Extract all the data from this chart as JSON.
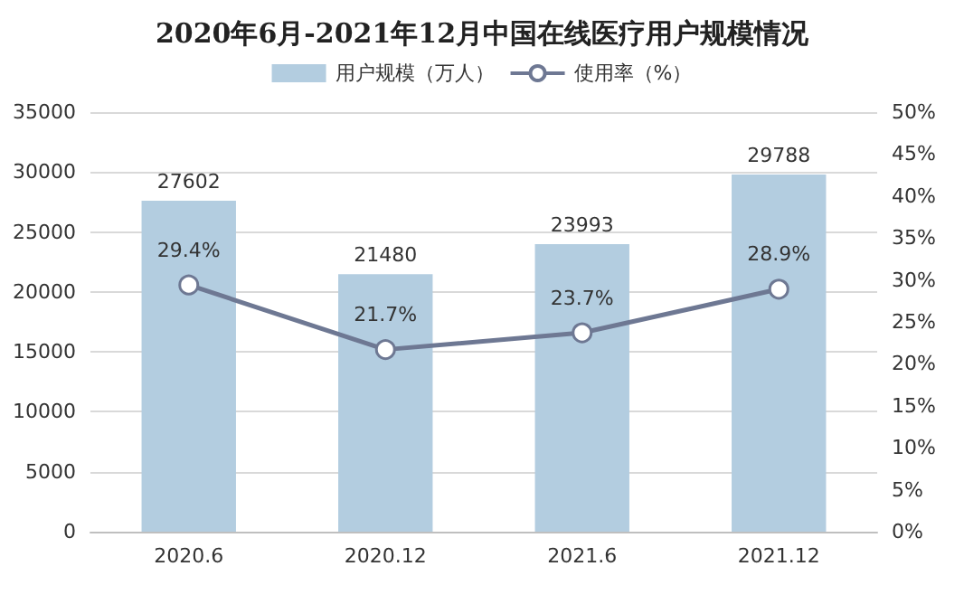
{
  "chart_data": {
    "type": "bar",
    "title": "2020年6月-2021年12月中国在线医疗用户规模情况",
    "categories": [
      "2020.6",
      "2020.12",
      "2021.6",
      "2021.12"
    ],
    "series": [
      {
        "name": "用户规模（万人）",
        "color": "#b3cde0",
        "values": [
          27602,
          21480,
          23993,
          29788
        ],
        "value_labels": [
          "27602",
          "21480",
          "23993",
          "29788"
        ]
      },
      {
        "name": "使用率（%）",
        "type": "line",
        "axis": "y2",
        "color": "#6e7893",
        "values": [
          29.4,
          21.7,
          23.7,
          28.9
        ],
        "value_labels": [
          "29.4%",
          "21.7%",
          "23.7%",
          "28.9%"
        ],
        "marker": "circle"
      }
    ],
    "ylim": [
      0,
      35000
    ],
    "yticks": [
      0,
      5000,
      10000,
      15000,
      20000,
      25000,
      30000,
      35000
    ],
    "y2lim": [
      0,
      50
    ],
    "y2ticks": [
      {
        "value": 0,
        "label": "0%"
      },
      {
        "value": 5,
        "label": "5%"
      },
      {
        "value": 10,
        "label": "10%"
      },
      {
        "value": 15,
        "label": "15%"
      },
      {
        "value": 20,
        "label": "20%"
      },
      {
        "value": 25,
        "label": "25%"
      },
      {
        "value": 30,
        "label": "30%"
      },
      {
        "value": 35,
        "label": "35%"
      },
      {
        "value": 40,
        "label": "40%"
      },
      {
        "value": 45,
        "label": "45%"
      },
      {
        "value": 50,
        "label": "50%"
      }
    ],
    "grid": "y",
    "legend": "top"
  }
}
